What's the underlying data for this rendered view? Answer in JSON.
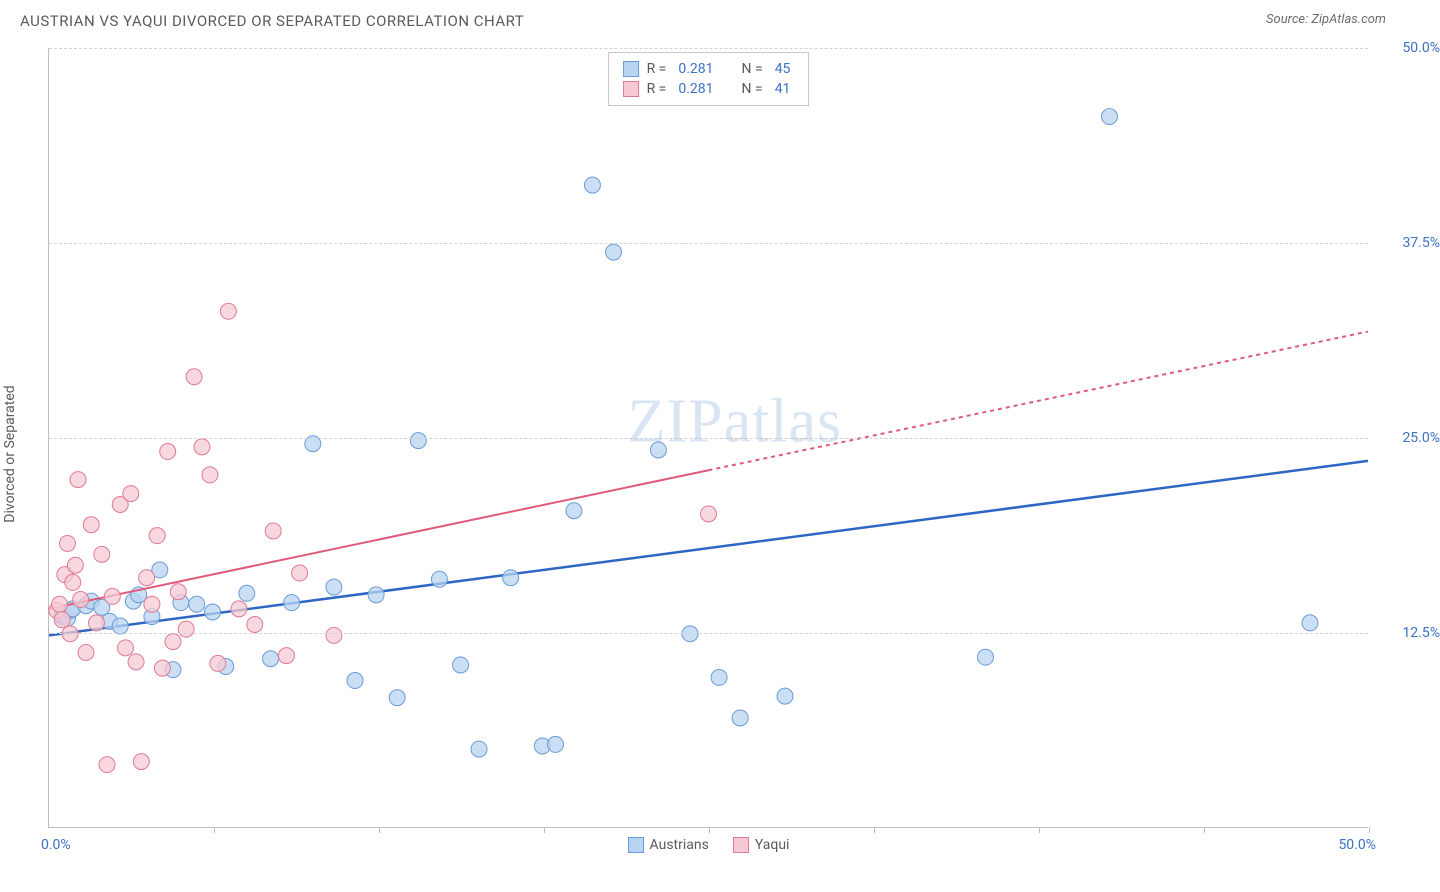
{
  "header": {
    "title": "AUSTRIAN VS YAQUI DIVORCED OR SEPARATED CORRELATION CHART",
    "source": "Source: ZipAtlas.com"
  },
  "chart": {
    "type": "scatter",
    "ylabel": "Divorced or Separated",
    "xlim": [
      0,
      50
    ],
    "ylim": [
      0,
      50
    ],
    "x_origin_label": "0.0%",
    "x_max_label": "50.0%",
    "ytick_labels": [
      "12.5%",
      "25.0%",
      "37.5%",
      "50.0%"
    ],
    "ytick_values": [
      12.5,
      25.0,
      37.5,
      50.0
    ],
    "xtick_values": [
      6.25,
      12.5,
      18.75,
      25.0,
      31.25,
      37.5,
      43.75,
      50.0
    ],
    "grid_color": "#d2d2d2",
    "axis_color": "#bdbdbd",
    "background_color": "#ffffff",
    "tick_label_color": "#3b72c4",
    "watermark_text": "ZIPatlas",
    "watermark_color": "rgba(120,160,210,0.28)",
    "series": [
      {
        "name": "Austrians",
        "marker_fill": "#b9d4f0",
        "marker_stroke": "#6a9bd8",
        "marker_radius": 8,
        "line_color": "#2e66c4",
        "line_width": 2.5,
        "line_dash": "none",
        "trend": {
          "x1": 0,
          "y1": 12.3,
          "x2": 50,
          "y2": 23.5
        },
        "points": [
          [
            0.5,
            13.5
          ],
          [
            0.5,
            13.6
          ],
          [
            0.7,
            13.4
          ],
          [
            0.8,
            13.9
          ],
          [
            0.9,
            14.0
          ],
          [
            1.4,
            14.2
          ],
          [
            1.6,
            14.5
          ],
          [
            2.0,
            14.1
          ],
          [
            2.3,
            13.2
          ],
          [
            2.7,
            12.9
          ],
          [
            3.2,
            14.5
          ],
          [
            3.4,
            14.9
          ],
          [
            3.9,
            13.5
          ],
          [
            4.2,
            16.5
          ],
          [
            4.7,
            10.1
          ],
          [
            5.0,
            14.4
          ],
          [
            5.6,
            14.3
          ],
          [
            6.2,
            13.8
          ],
          [
            6.7,
            10.3
          ],
          [
            7.5,
            15.0
          ],
          [
            8.4,
            10.8
          ],
          [
            9.2,
            14.4
          ],
          [
            10.0,
            24.6
          ],
          [
            10.8,
            15.4
          ],
          [
            11.6,
            9.4
          ],
          [
            12.4,
            14.9
          ],
          [
            13.2,
            8.3
          ],
          [
            14.0,
            24.8
          ],
          [
            14.8,
            15.9
          ],
          [
            15.6,
            10.4
          ],
          [
            16.3,
            5.0
          ],
          [
            17.5,
            16.0
          ],
          [
            18.7,
            5.2
          ],
          [
            19.2,
            5.3
          ],
          [
            19.9,
            20.3
          ],
          [
            20.6,
            41.2
          ],
          [
            21.4,
            36.9
          ],
          [
            23.1,
            24.2
          ],
          [
            24.3,
            12.4
          ],
          [
            25.4,
            9.6
          ],
          [
            26.2,
            7.0
          ],
          [
            27.9,
            8.4
          ],
          [
            35.5,
            10.9
          ],
          [
            40.2,
            45.6
          ],
          [
            47.8,
            13.1
          ]
        ]
      },
      {
        "name": "Yaqui",
        "marker_fill": "#f6c9d4",
        "marker_stroke": "#e07a94",
        "marker_radius": 8,
        "line_color": "#e05a7a",
        "line_width": 2,
        "line_dash": "4,4",
        "trend": {
          "x1": 0,
          "y1": 14.0,
          "x2": 50,
          "y2": 31.8
        },
        "trend_solid_until_x": 25,
        "points": [
          [
            0.3,
            13.9
          ],
          [
            0.4,
            14.3
          ],
          [
            0.5,
            13.3
          ],
          [
            0.6,
            16.2
          ],
          [
            0.7,
            18.2
          ],
          [
            0.8,
            12.4
          ],
          [
            0.9,
            15.7
          ],
          [
            1.0,
            16.8
          ],
          [
            1.1,
            22.3
          ],
          [
            1.2,
            14.6
          ],
          [
            1.4,
            11.2
          ],
          [
            1.6,
            19.4
          ],
          [
            1.8,
            13.1
          ],
          [
            2.0,
            17.5
          ],
          [
            2.2,
            4.0
          ],
          [
            2.4,
            14.8
          ],
          [
            2.7,
            20.7
          ],
          [
            2.9,
            11.5
          ],
          [
            3.1,
            21.4
          ],
          [
            3.3,
            10.6
          ],
          [
            3.5,
            4.2
          ],
          [
            3.7,
            16.0
          ],
          [
            3.9,
            14.3
          ],
          [
            4.1,
            18.7
          ],
          [
            4.3,
            10.2
          ],
          [
            4.5,
            24.1
          ],
          [
            4.7,
            11.9
          ],
          [
            4.9,
            15.1
          ],
          [
            5.2,
            12.7
          ],
          [
            5.5,
            28.9
          ],
          [
            5.8,
            24.4
          ],
          [
            6.1,
            22.6
          ],
          [
            6.4,
            10.5
          ],
          [
            6.8,
            33.1
          ],
          [
            7.2,
            14.0
          ],
          [
            7.8,
            13.0
          ],
          [
            8.5,
            19.0
          ],
          [
            9.0,
            11.0
          ],
          [
            9.5,
            16.3
          ],
          [
            10.8,
            12.3
          ],
          [
            25.0,
            20.1
          ]
        ]
      }
    ],
    "legend_top": [
      {
        "swatch_fill": "#b9d4f0",
        "swatch_stroke": "#6a9bd8",
        "r_label": "R =",
        "r_val": "0.281",
        "n_label": "N =",
        "n_val": "45"
      },
      {
        "swatch_fill": "#f6c9d4",
        "swatch_stroke": "#e07a94",
        "r_label": "R =",
        "r_val": "0.281",
        "n_label": "N =",
        "n_val": "41"
      }
    ],
    "legend_bottom": [
      {
        "swatch_fill": "#b9d4f0",
        "swatch_stroke": "#6a9bd8",
        "label": "Austrians"
      },
      {
        "swatch_fill": "#f6c9d4",
        "swatch_stroke": "#e07a94",
        "label": "Yaqui"
      }
    ]
  }
}
